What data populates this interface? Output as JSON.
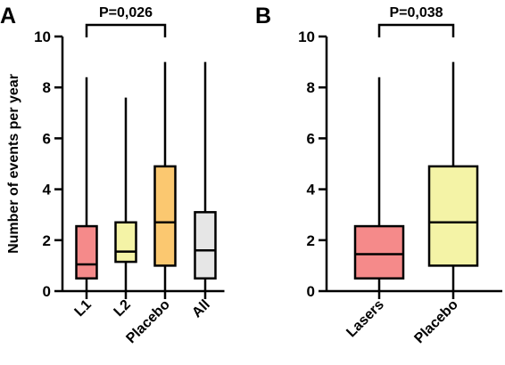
{
  "chart_data": [
    {
      "type": "box",
      "panel_label": "A",
      "ylabel": "Number of events per year",
      "ylim": [
        0,
        10
      ],
      "yticks": [
        0,
        2,
        4,
        6,
        8,
        10
      ],
      "categories": [
        "L1",
        "L2",
        "Placebo",
        "All"
      ],
      "boxes": [
        {
          "category": "L1",
          "min": 0,
          "q1": 0.5,
          "median": 1.05,
          "q3": 2.55,
          "max": 8.4,
          "color": "#f58a8a"
        },
        {
          "category": "L2",
          "min": 0,
          "q1": 1.15,
          "median": 1.55,
          "q3": 2.7,
          "max": 7.6,
          "color": "#f4f3a6"
        },
        {
          "category": "Placebo",
          "min": 0,
          "q1": 1.0,
          "median": 2.7,
          "q3": 4.9,
          "max": 9.0,
          "color": "#fbc870"
        },
        {
          "category": "All",
          "min": 0,
          "q1": 0.5,
          "median": 1.6,
          "q3": 3.1,
          "max": 9.0,
          "color": "#e6e6e6"
        }
      ],
      "annotations": [
        {
          "text": "P=0,026",
          "between": [
            "L1",
            "Placebo"
          ]
        }
      ]
    },
    {
      "type": "box",
      "panel_label": "B",
      "ylabel": "",
      "ylim": [
        0,
        10
      ],
      "yticks": [
        0,
        2,
        4,
        6,
        8,
        10
      ],
      "categories": [
        "Lasers",
        "Placebo"
      ],
      "boxes": [
        {
          "category": "Lasers",
          "min": 0,
          "q1": 0.5,
          "median": 1.45,
          "q3": 2.55,
          "max": 8.4,
          "color": "#f58a8a"
        },
        {
          "category": "Placebo",
          "min": 0,
          "q1": 1.0,
          "median": 2.7,
          "q3": 4.9,
          "max": 9.0,
          "color": "#f4f3a6"
        }
      ],
      "annotations": [
        {
          "text": "P=0,038",
          "between": [
            "Lasers",
            "Placebo"
          ]
        }
      ]
    }
  ]
}
